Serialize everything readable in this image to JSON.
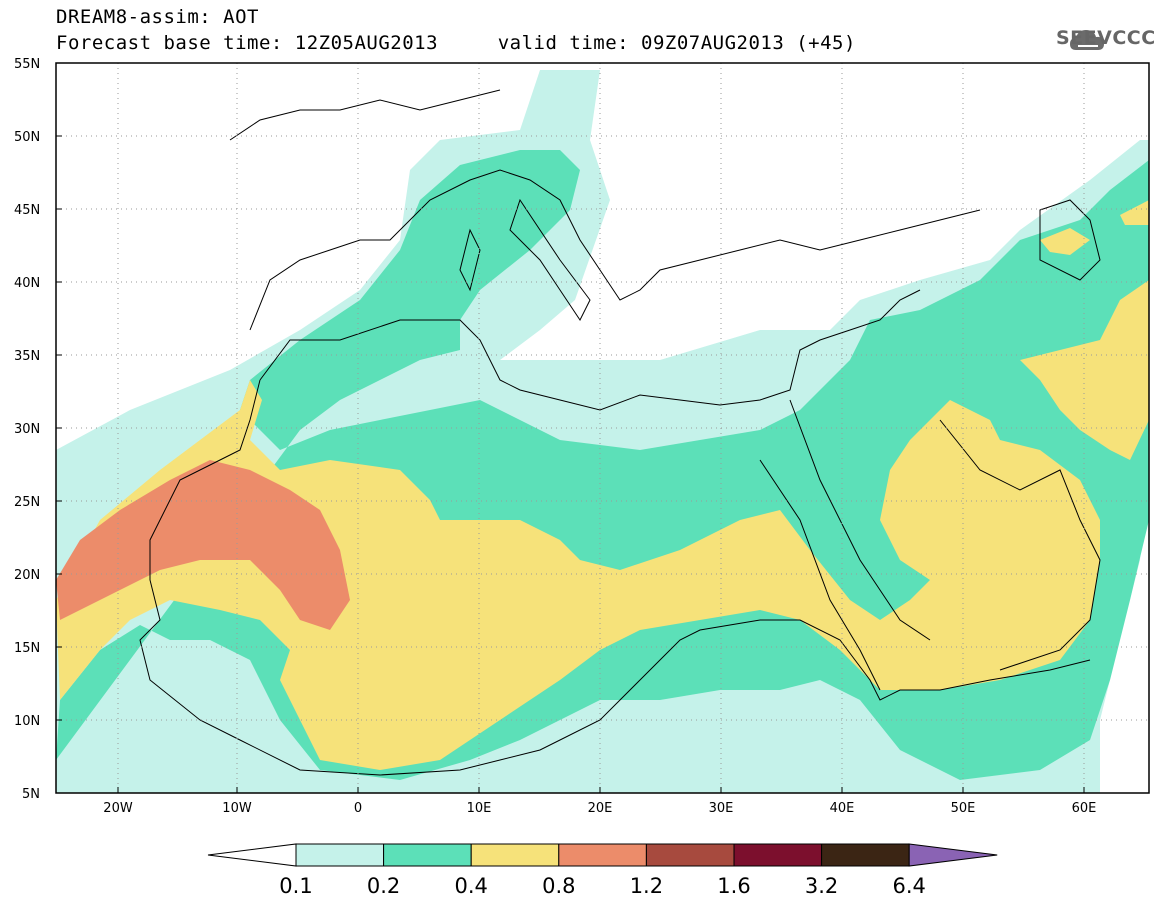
{
  "header": {
    "line1": "DREAM8-assim: AOT",
    "line2": "Forecast base time: 12Z05AUG2013     valid time: 09Z07AUG2013 (+45)"
  },
  "logo": {
    "text": "SEEVCCC",
    "icon": "cloud-logo-icon"
  },
  "map": {
    "lat_labels": [
      "55N",
      "50N",
      "45N",
      "40N",
      "35N",
      "30N",
      "25N",
      "20N",
      "15N",
      "10N",
      "5N"
    ],
    "lon_labels": [
      "20W",
      "10W",
      "0",
      "10E",
      "20E",
      "30E",
      "40E",
      "50E",
      "60E"
    ],
    "lon_range": [
      -25,
      65
    ],
    "lat_range": [
      5,
      55
    ],
    "grid": "dotted"
  },
  "colorbar": {
    "labels": [
      "0.1",
      "0.2",
      "0.4",
      "0.8",
      "1.2",
      "1.6",
      "3.2",
      "6.4"
    ],
    "colors": [
      "#ffffff",
      "#c5f2ea",
      "#5ce0b8",
      "#f6e27a",
      "#ec8c6a",
      "#a74a3e",
      "#7c0f2d",
      "#3b2514",
      "#8a63b4"
    ]
  },
  "legend_colors": {
    "c1": "#c5f2ea",
    "c2": "#5ce0b8",
    "c3": "#f6e27a",
    "c4": "#ec8c6a"
  }
}
